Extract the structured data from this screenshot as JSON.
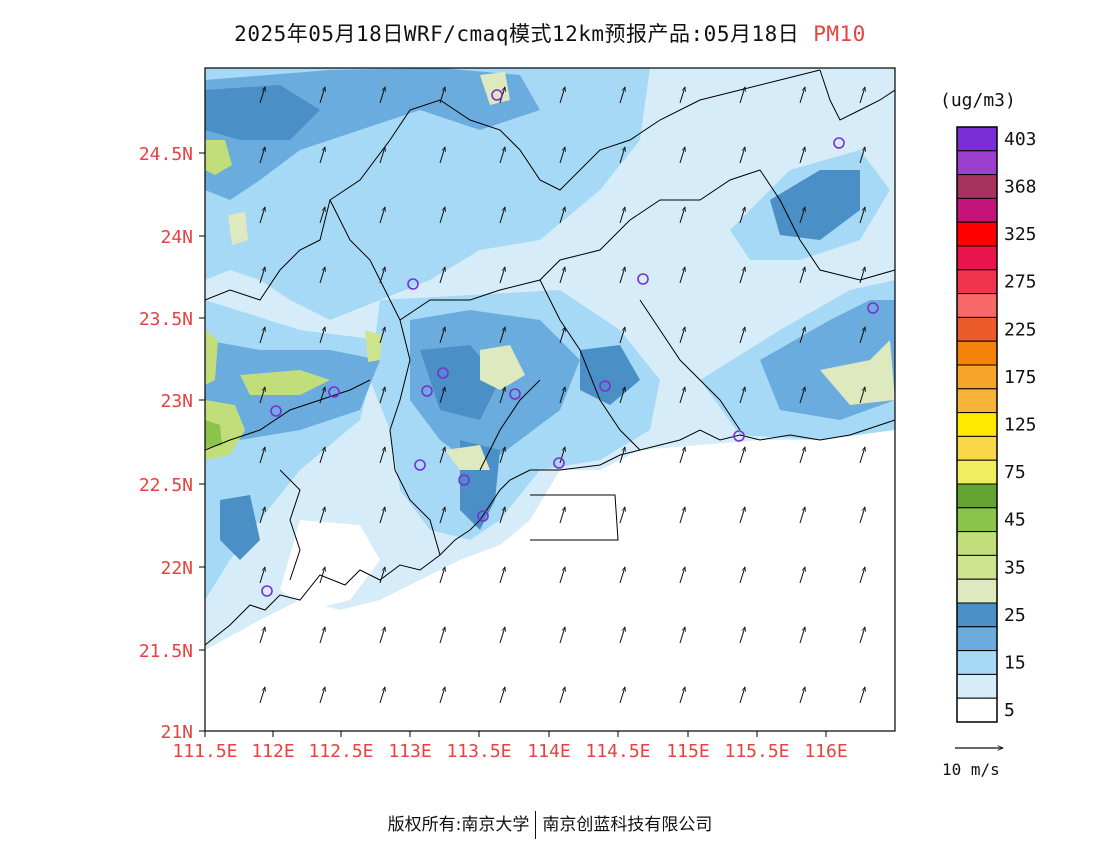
{
  "title": {
    "main": "2025年05月18日WRF/cmaq模式12km预报产品:05月18日",
    "pollutant": "PM10"
  },
  "map": {
    "lat_labels": [
      "24.5N",
      "24N",
      "23.5N",
      "23N",
      "22.5N",
      "22N",
      "21.5N",
      "21N"
    ],
    "lon_labels": [
      "111.5E",
      "112E",
      "112.5E",
      "113E",
      "113.5E",
      "114E",
      "114.5E",
      "115E",
      "115.5E",
      "116E"
    ],
    "label_color": "#e8413f",
    "wind_direction": "south-southwest"
  },
  "legend": {
    "unit": "(ug/m3)",
    "levels": [
      {
        "label": "403",
        "color": "#7a2fd6"
      },
      {
        "label": "",
        "color": "#9b3fcf"
      },
      {
        "label": "368",
        "color": "#a8325e"
      },
      {
        "label": "",
        "color": "#c4137a"
      },
      {
        "label": "325",
        "color": "#ff0000"
      },
      {
        "label": "",
        "color": "#e8144b"
      },
      {
        "label": "275",
        "color": "#f0334f"
      },
      {
        "label": "",
        "color": "#f86a6a"
      },
      {
        "label": "225",
        "color": "#ea5a2a"
      },
      {
        "label": "",
        "color": "#f5820a"
      },
      {
        "label": "175",
        "color": "#f7a52a"
      },
      {
        "label": "",
        "color": "#f7b23a"
      },
      {
        "label": "125",
        "color": "#ffe900"
      },
      {
        "label": "",
        "color": "#f8d648"
      },
      {
        "label": "75",
        "color": "#f0ee60"
      },
      {
        "label": "",
        "color": "#64a433"
      },
      {
        "label": "45",
        "color": "#8ac44c"
      },
      {
        "label": "",
        "color": "#c1de7a"
      },
      {
        "label": "35",
        "color": "#cfe48f"
      },
      {
        "label": "",
        "color": "#dfe9bf"
      },
      {
        "label": "25",
        "color": "#4a8fc6"
      },
      {
        "label": "",
        "color": "#6aacde"
      },
      {
        "label": "15",
        "color": "#a6d9f5"
      },
      {
        "label": "",
        "color": "#d6edf9"
      },
      {
        "label": "5",
        "color": "#ffffff"
      }
    ]
  },
  "wind_scale": {
    "label": "10 m/s"
  },
  "footer": {
    "left": "版权所有:南京大学",
    "right": "南京创蓝科技有限公司"
  }
}
